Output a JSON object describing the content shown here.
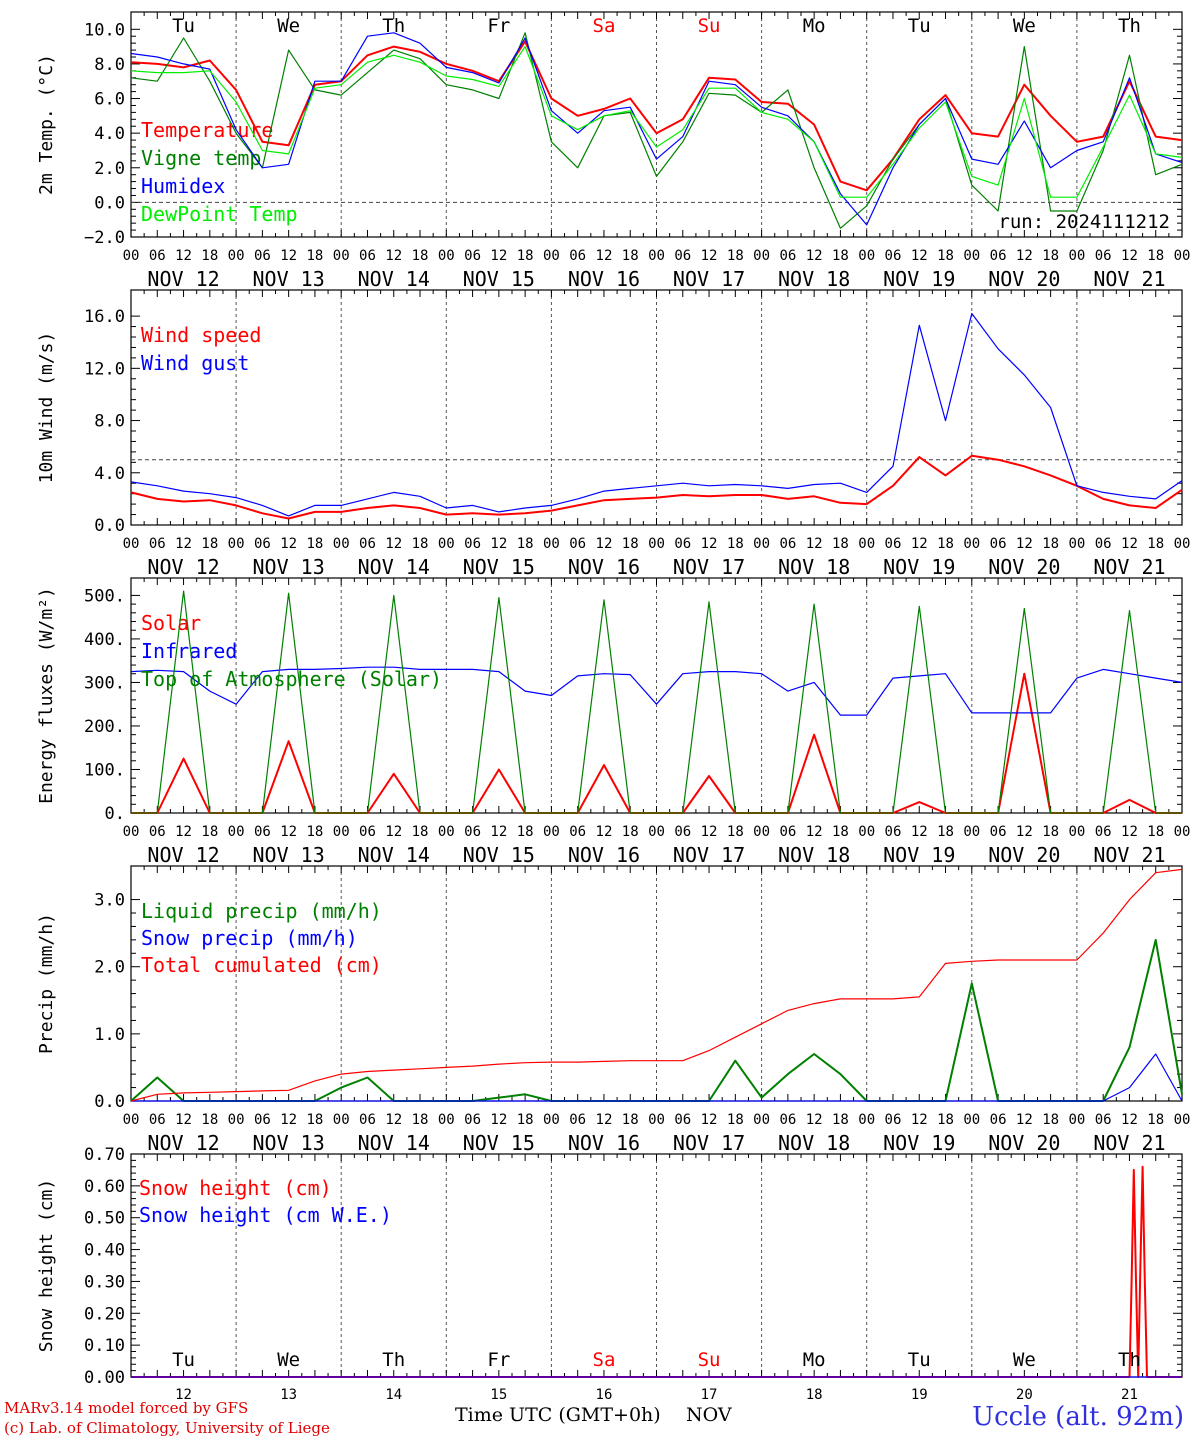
{
  "days": {
    "labels": [
      "NOV 12",
      "NOV 13",
      "NOV 14",
      "NOV 15",
      "NOV 16",
      "NOV 17",
      "NOV 18",
      "NOV 19",
      "NOV 20",
      "NOV 21"
    ],
    "weekday_top": [
      "Tu",
      "We",
      "Th",
      "Fr",
      "Sa",
      "Su",
      "Mo",
      "Tu",
      "We",
      "Th"
    ],
    "weekday_bottom": [
      "Tu",
      "We",
      "Th",
      "Fr",
      "Sa",
      "Su",
      "Mo",
      "Tu",
      "We",
      "Th"
    ],
    "weekday_colors": [
      "#000000",
      "#000000",
      "#000000",
      "#000000",
      "#ff0000",
      "#ff0000",
      "#000000",
      "#000000",
      "#000000",
      "#000000"
    ],
    "hours": [
      "00",
      "06",
      "12",
      "18"
    ],
    "final_hour": "00",
    "bottom_numbers": [
      "12",
      "13",
      "14",
      "15",
      "16",
      "17",
      "18",
      "19",
      "20",
      "21"
    ]
  },
  "footer": {
    "credit_line1": "MARv3.14 model forced by GFS",
    "credit_line2": "(c) Lab. of Climatology, University of Liege",
    "x_title": "Time UTC (GMT+0h)",
    "x_unit": "NOV",
    "station": "Uccle (alt. 92m)"
  },
  "chart_data": [
    {
      "type": "line",
      "ylabel": "2m Temp. (°C)",
      "ylim": [
        -2,
        11
      ],
      "yticks": [
        -2,
        0,
        2,
        4,
        6,
        8,
        10
      ],
      "ytick_labels": [
        "−2.0",
        "0.0",
        "2.0",
        "4.0",
        "6.0",
        "8.0",
        "10.0"
      ],
      "reference_line": 0,
      "run_label": "run: 2024111212",
      "x_hours": [
        0,
        6,
        12,
        18,
        24,
        30,
        36,
        42,
        48,
        54,
        60,
        66,
        72,
        78,
        84,
        90,
        96,
        102,
        108,
        114,
        120,
        126,
        132,
        138,
        144,
        150,
        156,
        162,
        168,
        174,
        180,
        186,
        192,
        198,
        204,
        210,
        216,
        222,
        228,
        234,
        240
      ],
      "series": [
        {
          "name": "Temperature",
          "color": "#ff0000",
          "values": [
            8.1,
            8.0,
            7.8,
            8.2,
            6.5,
            3.5,
            3.3,
            6.8,
            7.0,
            8.5,
            9.0,
            8.7,
            8.0,
            7.6,
            7.0,
            9.3,
            6.0,
            5.0,
            5.4,
            6.0,
            4.0,
            4.8,
            7.2,
            7.1,
            5.8,
            5.7,
            4.5,
            1.2,
            0.7,
            2.5,
            4.8,
            6.2,
            4.0,
            3.8,
            6.8,
            5.0,
            3.5,
            3.8,
            7.0,
            3.8,
            3.6
          ]
        },
        {
          "name": "Vigne temp",
          "color": "#008000",
          "values": [
            7.2,
            7.0,
            9.5,
            7.0,
            4.0,
            2.0,
            8.8,
            6.5,
            6.2,
            7.5,
            8.8,
            8.3,
            6.8,
            6.5,
            6.0,
            9.8,
            3.5,
            2.0,
            5.0,
            5.2,
            1.5,
            3.5,
            6.3,
            6.2,
            5.2,
            6.5,
            2.0,
            -1.5,
            -0.2,
            2.5,
            4.5,
            6.0,
            1.0,
            -0.5,
            9.0,
            -0.5,
            -0.5,
            3.0,
            8.5,
            1.6,
            2.2
          ]
        },
        {
          "name": "Humidex",
          "color": "#0000ff",
          "values": [
            8.6,
            8.4,
            8.0,
            7.7,
            4.2,
            2.0,
            2.2,
            7.0,
            7.0,
            9.6,
            9.8,
            9.2,
            7.8,
            7.5,
            6.9,
            9.5,
            5.3,
            4.0,
            5.3,
            5.5,
            2.5,
            3.8,
            7.0,
            6.8,
            5.5,
            5.0,
            3.5,
            0.5,
            -1.3,
            2.0,
            4.5,
            6.0,
            2.5,
            2.2,
            4.7,
            2.0,
            3.0,
            3.5,
            7.2,
            2.8,
            2.3
          ]
        },
        {
          "name": "DewPoint Temp",
          "color": "#00ee00",
          "values": [
            7.6,
            7.5,
            7.5,
            7.6,
            5.8,
            3.0,
            2.8,
            6.6,
            6.8,
            8.1,
            8.5,
            8.1,
            7.3,
            7.1,
            6.7,
            9.0,
            5.0,
            4.2,
            5.0,
            5.3,
            3.2,
            4.2,
            6.6,
            6.6,
            5.2,
            4.8,
            3.5,
            0.3,
            0.3,
            2.2,
            4.3,
            5.8,
            1.5,
            1.0,
            6.0,
            0.3,
            0.3,
            3.2,
            6.2,
            2.8,
            2.6
          ]
        }
      ]
    },
    {
      "type": "line",
      "ylabel": "10m Wind (m/s)",
      "ylim": [
        0,
        18
      ],
      "yticks": [
        0,
        4,
        8,
        12,
        16
      ],
      "ytick_labels": [
        "0.0",
        "4.0",
        "8.0",
        "12.0",
        "16.0"
      ],
      "reference_line": 5,
      "x_hours": [
        0,
        6,
        12,
        18,
        24,
        30,
        36,
        42,
        48,
        54,
        60,
        66,
        72,
        78,
        84,
        90,
        96,
        102,
        108,
        114,
        120,
        126,
        132,
        138,
        144,
        150,
        156,
        162,
        168,
        174,
        180,
        186,
        192,
        198,
        204,
        210,
        216,
        222,
        228,
        234,
        240
      ],
      "series": [
        {
          "name": "Wind speed",
          "color": "#ff0000",
          "values": [
            2.5,
            2.0,
            1.8,
            1.9,
            1.5,
            0.9,
            0.5,
            1.0,
            1.0,
            1.3,
            1.5,
            1.3,
            0.8,
            0.9,
            0.8,
            0.9,
            1.1,
            1.5,
            1.9,
            2.0,
            2.1,
            2.3,
            2.2,
            2.3,
            2.3,
            2.0,
            2.2,
            1.7,
            1.6,
            3.0,
            5.2,
            3.8,
            5.3,
            5.0,
            4.5,
            3.8,
            3.0,
            2.0,
            1.5,
            1.3,
            2.7
          ]
        },
        {
          "name": "Wind gust",
          "color": "#0000ff",
          "values": [
            3.3,
            3.0,
            2.6,
            2.4,
            2.1,
            1.5,
            0.7,
            1.5,
            1.5,
            2.0,
            2.5,
            2.2,
            1.3,
            1.5,
            1.0,
            1.3,
            1.5,
            2.0,
            2.6,
            2.8,
            3.0,
            3.2,
            3.0,
            3.1,
            3.0,
            2.8,
            3.1,
            3.2,
            2.5,
            4.5,
            15.3,
            8.0,
            16.2,
            13.5,
            11.5,
            9.0,
            3.0,
            2.5,
            2.2,
            2.0,
            3.4
          ]
        }
      ]
    },
    {
      "type": "line",
      "ylabel": "Energy fluxes (W/m²)",
      "ylim": [
        0,
        540
      ],
      "yticks": [
        0,
        100,
        200,
        300,
        400,
        500
      ],
      "ytick_labels": [
        "0.",
        "100.",
        "200.",
        "300.",
        "400.",
        "500."
      ],
      "x_hours": [
        0,
        6,
        12,
        18,
        24,
        30,
        36,
        42,
        48,
        54,
        60,
        66,
        72,
        78,
        84,
        90,
        96,
        102,
        108,
        114,
        120,
        126,
        132,
        138,
        144,
        150,
        156,
        162,
        168,
        174,
        180,
        186,
        192,
        198,
        204,
        210,
        216,
        222,
        228,
        234,
        240
      ],
      "series": [
        {
          "name": "Solar",
          "color": "#ff0000",
          "values": [
            0,
            0,
            125,
            0,
            0,
            0,
            165,
            0,
            0,
            0,
            90,
            0,
            0,
            0,
            100,
            0,
            0,
            0,
            110,
            0,
            0,
            0,
            85,
            0,
            0,
            0,
            180,
            0,
            0,
            0,
            25,
            0,
            0,
            0,
            320,
            0,
            0,
            0,
            30,
            0,
            0
          ]
        },
        {
          "name": "Infrared",
          "color": "#0000ff",
          "values": [
            325,
            328,
            325,
            280,
            250,
            325,
            330,
            330,
            332,
            335,
            335,
            330,
            330,
            330,
            325,
            280,
            270,
            315,
            320,
            318,
            250,
            320,
            325,
            325,
            320,
            280,
            300,
            225,
            225,
            310,
            315,
            320,
            230,
            230,
            230,
            230,
            310,
            330,
            320,
            310,
            300
          ]
        },
        {
          "name": "Top of Atmosphere (Solar)",
          "color": "#008000",
          "values": [
            0,
            0,
            510,
            0,
            0,
            0,
            505,
            0,
            0,
            0,
            500,
            0,
            0,
            0,
            495,
            0,
            0,
            0,
            490,
            0,
            0,
            0,
            485,
            0,
            0,
            0,
            480,
            0,
            0,
            0,
            475,
            0,
            0,
            0,
            470,
            0,
            0,
            0,
            465,
            0,
            0
          ]
        }
      ]
    },
    {
      "type": "line",
      "ylabel": "Precip (mm/h)",
      "ylim": [
        0,
        3.5
      ],
      "yticks": [
        0,
        1,
        2,
        3
      ],
      "ytick_labels": [
        "0.0",
        "1.0",
        "2.0",
        "3.0"
      ],
      "x_hours": [
        0,
        6,
        12,
        18,
        24,
        30,
        36,
        42,
        48,
        54,
        60,
        66,
        72,
        78,
        84,
        90,
        96,
        102,
        108,
        114,
        120,
        126,
        132,
        138,
        144,
        150,
        156,
        162,
        168,
        174,
        180,
        186,
        192,
        198,
        204,
        210,
        216,
        222,
        228,
        234,
        240
      ],
      "series": [
        {
          "name": "Liquid precip (mm/h)",
          "color": "#008000",
          "values": [
            0,
            0.35,
            0,
            0,
            0,
            0,
            0,
            0,
            0.2,
            0.35,
            0,
            0,
            0,
            0,
            0.05,
            0.1,
            0,
            0,
            0,
            0,
            0,
            0,
            0,
            0.6,
            0.05,
            0.4,
            0.7,
            0.4,
            0,
            0,
            0,
            0,
            1.75,
            0,
            0,
            0,
            0,
            0,
            0.8,
            2.4,
            0.1
          ]
        },
        {
          "name": "Snow precip (mm/h)",
          "color": "#0000ff",
          "values": [
            0,
            0,
            0,
            0,
            0,
            0,
            0,
            0,
            0,
            0,
            0,
            0,
            0,
            0,
            0,
            0,
            0,
            0,
            0,
            0,
            0,
            0,
            0,
            0,
            0,
            0,
            0,
            0,
            0,
            0,
            0,
            0,
            0,
            0,
            0,
            0,
            0,
            0,
            0.2,
            0.7,
            0
          ]
        },
        {
          "name": "Total cumulated (cm)",
          "color": "#ff0000",
          "values": [
            0,
            0.1,
            0.12,
            0.13,
            0.14,
            0.15,
            0.16,
            0.3,
            0.4,
            0.44,
            0.46,
            0.48,
            0.5,
            0.52,
            0.55,
            0.57,
            0.58,
            0.58,
            0.59,
            0.6,
            0.6,
            0.6,
            0.75,
            0.95,
            1.15,
            1.35,
            1.45,
            1.52,
            1.52,
            1.52,
            1.55,
            2.05,
            2.08,
            2.1,
            2.1,
            2.1,
            2.1,
            2.5,
            3.0,
            3.4,
            3.45
          ]
        }
      ]
    },
    {
      "type": "line",
      "ylabel": "Snow height (cm)",
      "ylim": [
        0,
        0.7
      ],
      "yticks": [
        0,
        0.1,
        0.2,
        0.3,
        0.4,
        0.5,
        0.6,
        0.7
      ],
      "ytick_labels": [
        "0.00",
        "0.10",
        "0.20",
        "0.30",
        "0.40",
        "0.50",
        "0.60",
        "0.70"
      ],
      "x_hours": [
        0,
        24,
        48,
        72,
        96,
        120,
        144,
        168,
        192,
        216,
        228,
        228.5,
        229,
        229.5,
        230,
        230.5,
        231,
        231.5,
        232,
        240
      ],
      "series": [
        {
          "name": "Snow height (cm)",
          "color": "#ff0000",
          "values": [
            0,
            0,
            0,
            0,
            0,
            0,
            0,
            0,
            0,
            0,
            0,
            0.3,
            0.65,
            0.3,
            0,
            0.35,
            0.66,
            0.3,
            0,
            0
          ]
        },
        {
          "name": "Snow height (cm W.E.)",
          "color": "#0000ff",
          "values": [
            0,
            0,
            0,
            0,
            0,
            0,
            0,
            0,
            0,
            0,
            0,
            0,
            0,
            0,
            0,
            0,
            0,
            0,
            0,
            0
          ]
        }
      ]
    }
  ]
}
